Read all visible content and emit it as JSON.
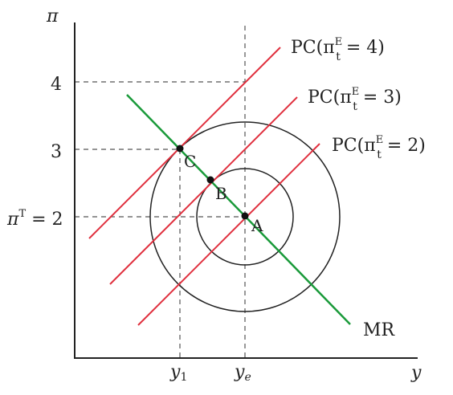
{
  "axes": {
    "y_axis_label": "π",
    "x_axis_label": "y"
  },
  "y_ticks": {
    "four": "4",
    "three": "3",
    "target_base": "π",
    "target_sup": "T",
    "target_value": " = 2"
  },
  "x_ticks": {
    "y1_base": "y",
    "y1_sub": "1",
    "ye_base": "y",
    "ye_sub": "e"
  },
  "curves": {
    "pc4": {
      "prefix": "PC(π",
      "sup": "E",
      "sub": "t",
      "suffix": " = 4)"
    },
    "pc3": {
      "prefix": "PC(π",
      "sup": "E",
      "sub": "t",
      "suffix": " = 3)"
    },
    "pc2": {
      "prefix": "PC(π",
      "sup": "E",
      "sub": "t",
      "suffix": " = 2)"
    },
    "mr": "MR"
  },
  "points": {
    "a": "A",
    "b": "B",
    "c": "C"
  },
  "colors": {
    "axis": "#222222",
    "pc_lines": "#e0303e",
    "mr_line": "#1a9a3a",
    "circles": "#222222",
    "guides": "#555555"
  }
}
